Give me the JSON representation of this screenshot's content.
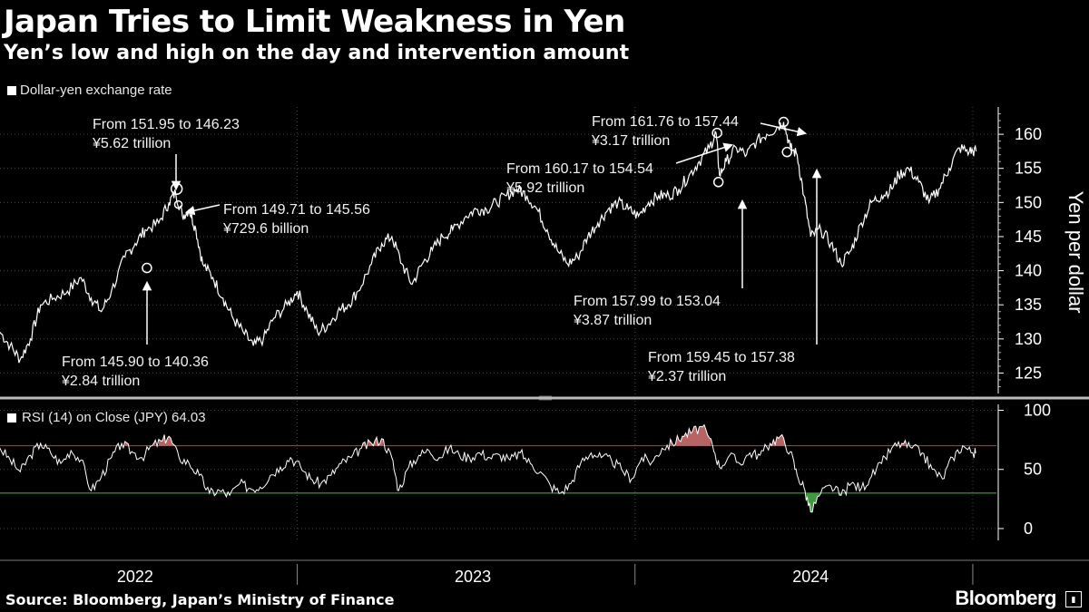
{
  "chart_data": [
    {
      "type": "line",
      "title": "Japan Tries to Limit Weakness in Yen",
      "subtitle": "Yen’s low and high on the day and intervention amount",
      "legend": "Dollar-yen exchange rate",
      "ylabel": "Yen per dollar",
      "ylim": [
        122,
        164
      ],
      "yticks": [
        125,
        130,
        135,
        140,
        145,
        150,
        155,
        160
      ],
      "xlim": [
        2022.0,
        2024.95
      ],
      "xticks": [
        {
          "label": "2022",
          "x": 2022.4
        },
        {
          "label": "2023",
          "x": 2023.4
        },
        {
          "label": "2024",
          "x": 2024.4
        }
      ],
      "year_separators": [
        2022.88,
        2023.88,
        2024.88
      ],
      "series": [
        {
          "name": "Dollar-yen exchange rate",
          "points": [
            [
              2022.0,
              131
            ],
            [
              2022.03,
              129
            ],
            [
              2022.06,
              127
            ],
            [
              2022.09,
              130
            ],
            [
              2022.12,
              135
            ],
            [
              2022.16,
              136
            ],
            [
              2022.2,
              137
            ],
            [
              2022.24,
              139
            ],
            [
              2022.27,
              136
            ],
            [
              2022.3,
              134
            ],
            [
              2022.33,
              137
            ],
            [
              2022.37,
              142
            ],
            [
              2022.4,
              144
            ],
            [
              2022.43,
              146
            ],
            [
              2022.47,
              147
            ],
            [
              2022.5,
              150
            ],
            [
              2022.52,
              151.5
            ],
            [
              2022.54,
              148
            ],
            [
              2022.56,
              149
            ],
            [
              2022.58,
              146
            ],
            [
              2022.6,
              141
            ],
            [
              2022.63,
              139
            ],
            [
              2022.66,
              136
            ],
            [
              2022.69,
              133
            ],
            [
              2022.72,
              131
            ],
            [
              2022.75,
              129
            ],
            [
              2022.78,
              130
            ],
            [
              2022.81,
              133
            ],
            [
              2022.85,
              135
            ],
            [
              2022.88,
              137
            ],
            [
              2022.91,
              134
            ],
            [
              2022.94,
              131
            ],
            [
              2022.97,
              132
            ],
            [
              2023.0,
              134
            ],
            [
              2023.03,
              135
            ],
            [
              2023.06,
              137
            ],
            [
              2023.1,
              141
            ],
            [
              2023.13,
              144
            ],
            [
              2023.16,
              145
            ],
            [
              2023.19,
              141
            ],
            [
              2023.22,
              138
            ],
            [
              2023.25,
              141
            ],
            [
              2023.28,
              143
            ],
            [
              2023.31,
              145
            ],
            [
              2023.34,
              146
            ],
            [
              2023.38,
              148
            ],
            [
              2023.41,
              149
            ],
            [
              2023.44,
              149
            ],
            [
              2023.47,
              150
            ],
            [
              2023.5,
              151
            ],
            [
              2023.53,
              152
            ],
            [
              2023.56,
              151
            ],
            [
              2023.59,
              149
            ],
            [
              2023.62,
              146
            ],
            [
              2023.65,
              143
            ],
            [
              2023.68,
              141
            ],
            [
              2023.71,
              142
            ],
            [
              2023.74,
              145
            ],
            [
              2023.77,
              147
            ],
            [
              2023.8,
              149
            ],
            [
              2023.83,
              150
            ],
            [
              2023.86,
              149
            ],
            [
              2023.89,
              148
            ],
            [
              2023.92,
              150
            ],
            [
              2023.95,
              151
            ],
            [
              2023.98,
              151
            ],
            [
              2024.01,
              152
            ],
            [
              2024.04,
              154
            ],
            [
              2024.07,
              156
            ],
            [
              2024.1,
              158
            ],
            [
              2024.12,
              160.2
            ],
            [
              2024.13,
              154
            ],
            [
              2024.15,
              156
            ],
            [
              2024.18,
              158
            ],
            [
              2024.21,
              157
            ],
            [
              2024.24,
              159
            ],
            [
              2024.27,
              160
            ],
            [
              2024.3,
              161
            ],
            [
              2024.32,
              161.8
            ],
            [
              2024.34,
              158
            ],
            [
              2024.36,
              157
            ],
            [
              2024.38,
              151
            ],
            [
              2024.4,
              145
            ],
            [
              2024.43,
              146
            ],
            [
              2024.46,
              144
            ],
            [
              2024.49,
              141
            ],
            [
              2024.52,
              143
            ],
            [
              2024.55,
              147
            ],
            [
              2024.58,
              150
            ],
            [
              2024.61,
              151
            ],
            [
              2024.64,
              152
            ],
            [
              2024.66,
              154
            ],
            [
              2024.69,
              155
            ],
            [
              2024.72,
              153
            ],
            [
              2024.75,
              150
            ],
            [
              2024.78,
              152
            ],
            [
              2024.81,
              155
            ],
            [
              2024.84,
              158
            ],
            [
              2024.87,
              157.5
            ],
            [
              2024.89,
              157.5
            ]
          ]
        }
      ],
      "annotations": [
        {
          "text1": "From 151.95 to 146.23",
          "text2": "¥5.62 trillion",
          "x": 2022.523,
          "y": 152.0
        },
        {
          "text1": "From 149.71 to 145.56",
          "text2": "¥729.6 billion",
          "x": 2022.528,
          "y": 149.7
        },
        {
          "text1": "From 145.90 to 140.36",
          "text2": "¥2.84 trillion",
          "x": 2022.435,
          "y": 140.4
        },
        {
          "text1": "From 161.76 to 157.44",
          "text2": "¥3.17 trillion",
          "x": 2024.32,
          "y": 161.8
        },
        {
          "text1": "From 160.17 to 154.54",
          "text2": "¥5.92 trillion",
          "x": 2024.123,
          "y": 160.2
        },
        {
          "text1": "From 157.99 to 153.04",
          "text2": "¥3.87 trillion",
          "x": 2024.127,
          "y": 153.0
        },
        {
          "text1": "From 159.45 to 157.38",
          "text2": "¥2.37 trillion",
          "x": 2024.33,
          "y": 157.4
        }
      ]
    },
    {
      "type": "line",
      "title": "RSI (14)  on Close (JPY) 64.03",
      "ylim": [
        -10,
        105
      ],
      "yticks": [
        0,
        50,
        100
      ],
      "overbought": 70,
      "oversold": 30,
      "series": [
        {
          "name": "RSI (14)",
          "points": [
            [
              2022.0,
              68
            ],
            [
              2022.03,
              58
            ],
            [
              2022.06,
              48
            ],
            [
              2022.09,
              62
            ],
            [
              2022.12,
              72
            ],
            [
              2022.15,
              64
            ],
            [
              2022.18,
              55
            ],
            [
              2022.21,
              66
            ],
            [
              2022.24,
              58
            ],
            [
              2022.27,
              32
            ],
            [
              2022.3,
              44
            ],
            [
              2022.33,
              60
            ],
            [
              2022.36,
              72
            ],
            [
              2022.39,
              65
            ],
            [
              2022.42,
              60
            ],
            [
              2022.45,
              70
            ],
            [
              2022.48,
              74
            ],
            [
              2022.5,
              78
            ],
            [
              2022.53,
              60
            ],
            [
              2022.56,
              55
            ],
            [
              2022.59,
              45
            ],
            [
              2022.62,
              30
            ],
            [
              2022.65,
              32
            ],
            [
              2022.68,
              28
            ],
            [
              2022.71,
              38
            ],
            [
              2022.74,
              34
            ],
            [
              2022.77,
              35
            ],
            [
              2022.8,
              45
            ],
            [
              2022.83,
              52
            ],
            [
              2022.86,
              60
            ],
            [
              2022.89,
              52
            ],
            [
              2022.92,
              42
            ],
            [
              2022.95,
              38
            ],
            [
              2022.98,
              45
            ],
            [
              2023.01,
              55
            ],
            [
              2023.04,
              60
            ],
            [
              2023.07,
              68
            ],
            [
              2023.1,
              72
            ],
            [
              2023.13,
              76
            ],
            [
              2023.16,
              60
            ],
            [
              2023.18,
              32
            ],
            [
              2023.21,
              52
            ],
            [
              2023.24,
              62
            ],
            [
              2023.27,
              66
            ],
            [
              2023.3,
              60
            ],
            [
              2023.33,
              68
            ],
            [
              2023.36,
              62
            ],
            [
              2023.39,
              60
            ],
            [
              2023.42,
              64
            ],
            [
              2023.45,
              60
            ],
            [
              2023.48,
              62
            ],
            [
              2023.51,
              58
            ],
            [
              2023.54,
              64
            ],
            [
              2023.57,
              55
            ],
            [
              2023.6,
              48
            ],
            [
              2023.63,
              36
            ],
            [
              2023.66,
              30
            ],
            [
              2023.69,
              38
            ],
            [
              2023.72,
              56
            ],
            [
              2023.75,
              64
            ],
            [
              2023.78,
              60
            ],
            [
              2023.81,
              58
            ],
            [
              2023.84,
              50
            ],
            [
              2023.87,
              42
            ],
            [
              2023.9,
              60
            ],
            [
              2023.93,
              56
            ],
            [
              2023.96,
              68
            ],
            [
              2023.99,
              72
            ],
            [
              2024.02,
              78
            ],
            [
              2024.05,
              82
            ],
            [
              2024.08,
              86
            ],
            [
              2024.11,
              70
            ],
            [
              2024.13,
              52
            ],
            [
              2024.16,
              62
            ],
            [
              2024.19,
              55
            ],
            [
              2024.22,
              64
            ],
            [
              2024.25,
              62
            ],
            [
              2024.28,
              72
            ],
            [
              2024.31,
              78
            ],
            [
              2024.34,
              65
            ],
            [
              2024.36,
              45
            ],
            [
              2024.38,
              35
            ],
            [
              2024.4,
              14
            ],
            [
              2024.43,
              30
            ],
            [
              2024.46,
              36
            ],
            [
              2024.49,
              28
            ],
            [
              2024.52,
              38
            ],
            [
              2024.55,
              34
            ],
            [
              2024.58,
              44
            ],
            [
              2024.61,
              55
            ],
            [
              2024.64,
              68
            ],
            [
              2024.67,
              72
            ],
            [
              2024.7,
              68
            ],
            [
              2024.73,
              64
            ],
            [
              2024.76,
              50
            ],
            [
              2024.79,
              42
            ],
            [
              2024.82,
              60
            ],
            [
              2024.85,
              70
            ],
            [
              2024.88,
              64
            ],
            [
              2024.89,
              64.03
            ]
          ]
        }
      ]
    }
  ],
  "footer": {
    "source": "Source: Bloomberg, Japan’s Ministry of Finance",
    "brand": "Bloomberg"
  }
}
